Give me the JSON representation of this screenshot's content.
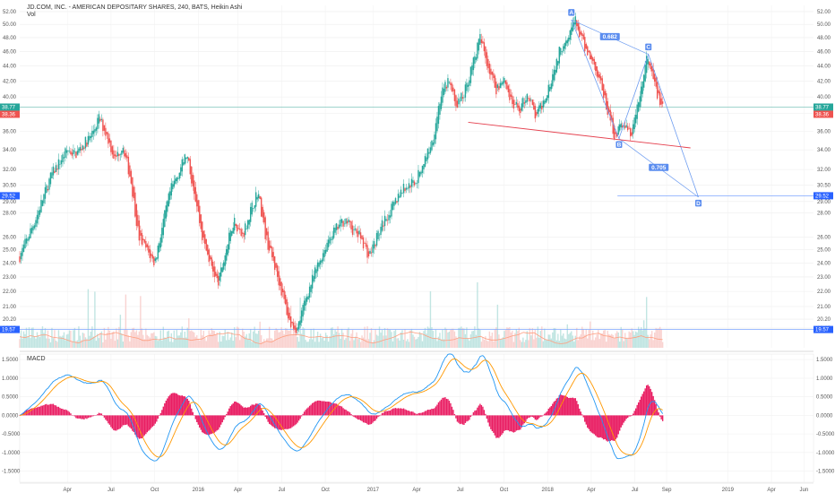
{
  "header": {
    "title": "JD.COM, INC. - AMERICAN DEPOSITARY SHARES, 240, BATS, Heikin Ashi",
    "volume_label": "Vol"
  },
  "price_axis": {
    "ticks": [
      "52.00",
      "50.00",
      "48.00",
      "46.00",
      "44.00",
      "42.00",
      "40.00",
      "38.00",
      "36.00",
      "34.00",
      "32.00",
      "30.50",
      "29.00",
      "28.00",
      "26.00",
      "25.00",
      "24.00",
      "23.00",
      "22.00",
      "21.00",
      "20.20",
      "19.65"
    ],
    "range": [
      18.5,
      53
    ]
  },
  "price_tags": {
    "last": {
      "value": "38.77",
      "color": "#26a69a"
    },
    "prev": {
      "value": "38.36",
      "color": "#ef5350"
    },
    "target": {
      "value": "29.52",
      "color": "#2962ff"
    },
    "low": {
      "value": "19.57",
      "color": "#2962ff"
    }
  },
  "macd_panel": {
    "label": "MACD",
    "ticks": [
      "1.5000",
      "1.0000",
      "0.5000",
      "0.0000",
      "-0.5000",
      "-1.0000",
      "-1.5000"
    ],
    "range": [
      -1.8,
      1.65
    ]
  },
  "time_axis": {
    "labels": [
      {
        "text": "Apr",
        "t": 0.06
      },
      {
        "text": "Jul",
        "t": 0.115
      },
      {
        "text": "Oct",
        "t": 0.17
      },
      {
        "text": "2016",
        "t": 0.225
      },
      {
        "text": "Apr",
        "t": 0.275
      },
      {
        "text": "Jul",
        "t": 0.33
      },
      {
        "text": "Oct",
        "t": 0.385
      },
      {
        "text": "2017",
        "t": 0.445
      },
      {
        "text": "Apr",
        "t": 0.5
      },
      {
        "text": "Jul",
        "t": 0.555
      },
      {
        "text": "Oct",
        "t": 0.61
      },
      {
        "text": "2018",
        "t": 0.665
      },
      {
        "text": "Apr",
        "t": 0.72
      },
      {
        "text": "Jul",
        "t": 0.775
      },
      {
        "text": "Sep",
        "t": 0.815
      },
      {
        "text": "2019",
        "t": 0.892
      },
      {
        "text": "Apr",
        "t": 0.947
      },
      {
        "text": "Jun",
        "t": 0.988
      }
    ]
  },
  "chart_data": {
    "type": "candlestick",
    "title": "JD.COM, INC. - AMERICAN DEPOSITARY SHARES, 240, BATS, Heikin Ashi",
    "y_scale": "log",
    "price_path": [
      [
        0.0,
        24.5
      ],
      [
        0.02,
        27.5
      ],
      [
        0.04,
        31.5
      ],
      [
        0.06,
        34.0
      ],
      [
        0.07,
        33.5
      ],
      [
        0.09,
        35.5
      ],
      [
        0.1,
        37.5
      ],
      [
        0.11,
        35.5
      ],
      [
        0.12,
        33.0
      ],
      [
        0.13,
        34.5
      ],
      [
        0.14,
        31.0
      ],
      [
        0.15,
        26.0
      ],
      [
        0.16,
        25.0
      ],
      [
        0.17,
        24.0
      ],
      [
        0.18,
        27.0
      ],
      [
        0.19,
        30.0
      ],
      [
        0.21,
        33.5
      ],
      [
        0.22,
        30.0
      ],
      [
        0.23,
        26.0
      ],
      [
        0.24,
        24.0
      ],
      [
        0.25,
        22.5
      ],
      [
        0.26,
        25.0
      ],
      [
        0.27,
        27.5
      ],
      [
        0.28,
        26.0
      ],
      [
        0.29,
        28.0
      ],
      [
        0.3,
        30.0
      ],
      [
        0.31,
        26.0
      ],
      [
        0.32,
        24.0
      ],
      [
        0.33,
        22.0
      ],
      [
        0.34,
        20.0
      ],
      [
        0.35,
        19.6
      ],
      [
        0.36,
        21.5
      ],
      [
        0.37,
        23.0
      ],
      [
        0.38,
        24.5
      ],
      [
        0.39,
        26.0
      ],
      [
        0.41,
        27.5
      ],
      [
        0.42,
        26.5
      ],
      [
        0.43,
        26.0
      ],
      [
        0.44,
        24.5
      ],
      [
        0.45,
        26.0
      ],
      [
        0.46,
        27.5
      ],
      [
        0.47,
        28.5
      ],
      [
        0.48,
        30.0
      ],
      [
        0.5,
        31.0
      ],
      [
        0.51,
        33.0
      ],
      [
        0.52,
        35.0
      ],
      [
        0.53,
        40.0
      ],
      [
        0.54,
        42.0
      ],
      [
        0.55,
        39.0
      ],
      [
        0.56,
        40.5
      ],
      [
        0.57,
        44.0
      ],
      [
        0.58,
        48.0
      ],
      [
        0.59,
        44.0
      ],
      [
        0.6,
        41.0
      ],
      [
        0.61,
        42.5
      ],
      [
        0.62,
        39.0
      ],
      [
        0.63,
        38.5
      ],
      [
        0.64,
        40.5
      ],
      [
        0.65,
        37.5
      ],
      [
        0.66,
        39.5
      ],
      [
        0.67,
        42.5
      ],
      [
        0.68,
        46.0
      ],
      [
        0.69,
        48.5
      ],
      [
        0.7,
        50.5
      ],
      [
        0.71,
        47.0
      ],
      [
        0.72,
        45.0
      ],
      [
        0.73,
        42.5
      ],
      [
        0.74,
        38.5
      ],
      [
        0.75,
        35.5
      ],
      [
        0.76,
        37.0
      ],
      [
        0.77,
        35.5
      ],
      [
        0.78,
        39.5
      ],
      [
        0.79,
        45.0
      ],
      [
        0.8,
        41.5
      ],
      [
        0.81,
        38.5
      ]
    ],
    "volume_range": [
      0,
      1
    ],
    "macd_range": [
      -1.8,
      1.65
    ],
    "horizontal_levels": [
      38.77,
      29.52,
      19.57
    ],
    "harmonic_pattern": {
      "points": [
        {
          "label": "A",
          "price": 50.7,
          "t": 0.695
        },
        {
          "label": "B",
          "price": 35.2,
          "t": 0.755
        },
        {
          "label": "C",
          "price": 45.6,
          "t": 0.792
        },
        {
          "label": "D",
          "price": 29.4,
          "t": 0.855
        }
      ],
      "ratios": [
        {
          "text": "0.682",
          "between": [
            "A",
            "C"
          ]
        },
        {
          "text": "0.705",
          "between": [
            "B",
            "D"
          ]
        }
      ]
    },
    "trendline": {
      "from": [
        0.565,
        37.0
      ],
      "to": [
        0.845,
        34.2
      ]
    }
  }
}
